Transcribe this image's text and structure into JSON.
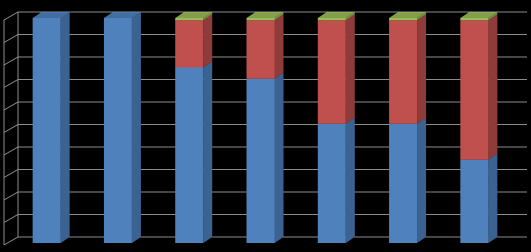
{
  "chart_data": {
    "type": "stacked-bar-3d",
    "categories": [
      null,
      null,
      null,
      null,
      null,
      null,
      null
    ],
    "series": [
      {
        "color": "#4f81bd",
        "side_color": "#3a6391",
        "values": [
          100,
          100,
          78,
          73,
          53,
          53,
          37
        ]
      },
      {
        "color": "#c0504d",
        "side_color": "#8f3b39",
        "values": [
          0,
          0,
          21,
          26,
          46,
          46,
          62
        ]
      },
      {
        "color": "#9bbb59",
        "side_color": "#738c42",
        "values": [
          0,
          0,
          1,
          1,
          1,
          1,
          1
        ]
      }
    ],
    "ylim": [
      0,
      100
    ],
    "yticks": [
      0,
      10,
      20,
      30,
      40,
      50,
      60,
      70,
      80,
      90,
      100
    ],
    "grid": true,
    "background": "#000000",
    "grid_color": "#8c8c8c"
  }
}
